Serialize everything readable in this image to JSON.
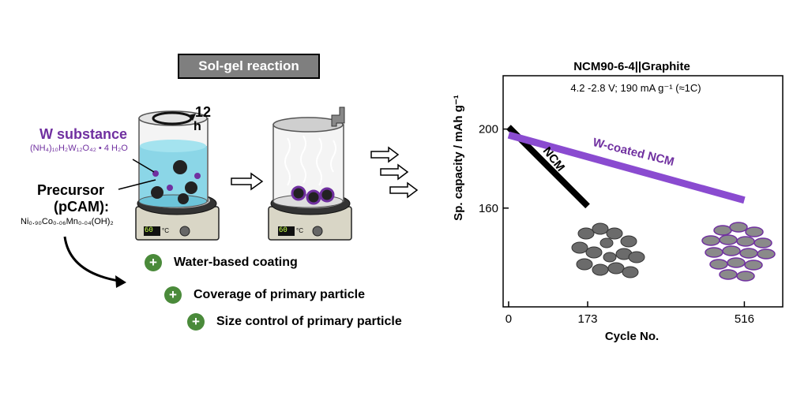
{
  "schematic": {
    "banner": "Sol-gel reaction",
    "duration_number": "12",
    "duration_unit": "h",
    "w_substance_label": "W substance",
    "w_formula": "(NH₄)₁₀H₂W₁₂O₄₂ • 4 H₂O",
    "precursor_label": "Precursor",
    "pcam_label": "(pCAM):",
    "precursor_formula": "Ni₀.₉₀Co₀.₀₆Mn₀.₀₄(OH)₂",
    "hotplate_display_1": "60",
    "hotplate_display_2": "60",
    "hotplate_unit": "°C",
    "benefits": [
      "Water-based coating",
      "Coverage of primary particle",
      "Size control of primary particle"
    ],
    "colors": {
      "tungsten": "#7030a0",
      "water": "#7fd3e6",
      "plus": "#4a8a3a"
    }
  },
  "chart_data": {
    "type": "line",
    "title": "NCM90-6-4||Graphite",
    "subtitle": "4.2 -2.8 V; 190 mA g⁻¹ (≈1C)",
    "xlabel": "Cycle No.",
    "ylabel": "Sp. capacity / mAh g⁻¹",
    "xticks": [
      0,
      173,
      516
    ],
    "yticks": [
      160,
      200
    ],
    "xlim": [
      -12,
      600
    ],
    "ylim": [
      110,
      227
    ],
    "series": [
      {
        "name": "NCM",
        "color": "#000000",
        "x": [
          0,
          173
        ],
        "y": [
          201,
          161
        ]
      },
      {
        "name": "W-coated NCM",
        "color": "#8a4bd0",
        "x": [
          0,
          516
        ],
        "y": [
          197,
          164
        ]
      }
    ],
    "particle_labels": [
      "NCM",
      "W-coated NCM"
    ]
  }
}
